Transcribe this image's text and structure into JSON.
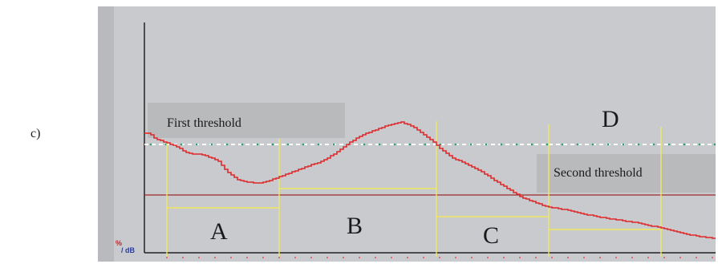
{
  "panel_label": "c)",
  "thresholds": {
    "first_label": "First threshold",
    "second_label": "Second threshold"
  },
  "regions": {
    "a": "A",
    "b": "B",
    "c": "C",
    "d": "D"
  },
  "unit_icon": {
    "top": "%",
    "bottom": "/ dB"
  },
  "colors": {
    "screen_bg": "#c9cacd",
    "curve": "#e0282a",
    "first_threshold_line": "#ffffff",
    "first_threshold_dots": "#2aa06a",
    "second_threshold_line": "#9c2b2b",
    "marker_lines": "#f0e860",
    "axis": "#222222"
  }
}
